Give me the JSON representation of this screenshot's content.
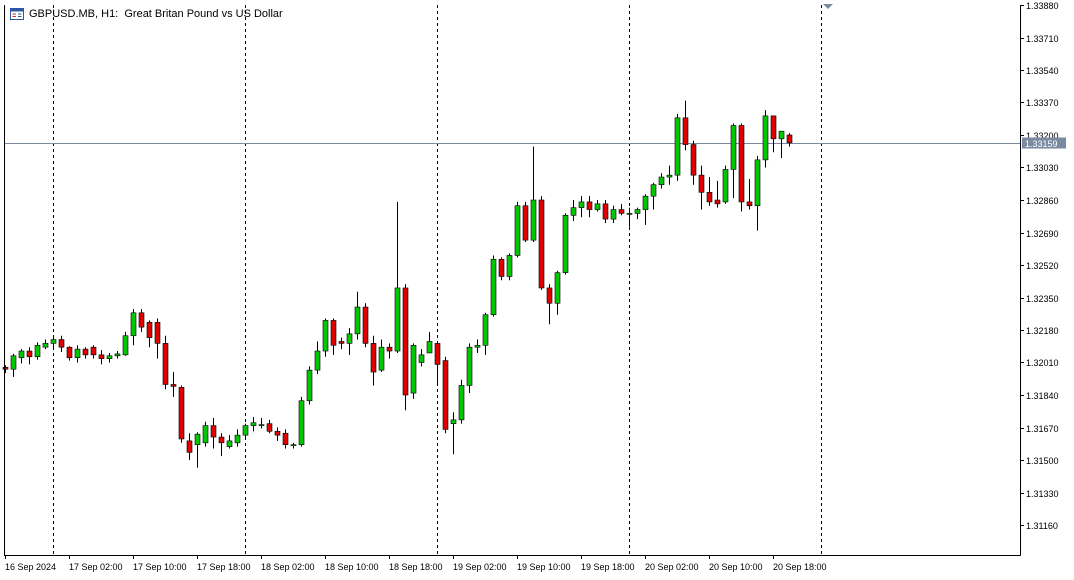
{
  "chart_data": {
    "type": "candlestick",
    "symbol_title": "GBPUSD.MB, H1:  Great Britan Pound vs US Dollar",
    "current_price_label": "1.33159",
    "current_price": 1.33159,
    "y_ticks": [
      "1.33880",
      "1.33710",
      "1.33540",
      "1.33370",
      "1.33200",
      "1.33030",
      "1.32860",
      "1.32690",
      "1.32520",
      "1.32350",
      "1.32180",
      "1.32010",
      "1.31840",
      "1.31670",
      "1.31500",
      "1.31330",
      "1.31160"
    ],
    "ylim": [
      1.3101,
      1.3388
    ],
    "x_labels": [
      "16 Sep 2024",
      "17 Sep 02:00",
      "17 Sep 10:00",
      "17 Sep 18:00",
      "18 Sep 02:00",
      "18 Sep 10:00",
      "18 Sep 18:00",
      "19 Sep 02:00",
      "19 Sep 10:00",
      "19 Sep 18:00",
      "20 Sep 02:00",
      "20 Sep 10:00",
      "20 Sep 18:00"
    ],
    "x_label_bar_index": [
      0,
      8,
      16,
      24,
      32,
      40,
      48,
      56,
      64,
      72,
      80,
      88,
      96
    ],
    "day_separator_bar_index": [
      6,
      30,
      54,
      78,
      102
    ],
    "colors": {
      "bull": "#00c800",
      "bear": "#e00000",
      "wick": "#000000",
      "price_line": "#7a8aa0",
      "price_label_bg": "#7a8aa0",
      "grid_sep": "#000000",
      "axis": "#000000"
    },
    "candles": [
      [
        1.31985,
        1.31975,
        1.31995,
        1.31955
      ],
      [
        1.31975,
        1.32045,
        1.32055,
        1.31935
      ],
      [
        1.32035,
        1.3207,
        1.3208,
        1.32005
      ],
      [
        1.3207,
        1.3204,
        1.3209,
        1.32
      ],
      [
        1.3204,
        1.321,
        1.32115,
        1.32025
      ],
      [
        1.3209,
        1.3211,
        1.3213,
        1.3208
      ],
      [
        1.3211,
        1.3213,
        1.3215,
        1.3208
      ],
      [
        1.3213,
        1.3209,
        1.3215,
        1.32065
      ],
      [
        1.3209,
        1.32035,
        1.32095,
        1.3202
      ],
      [
        1.32035,
        1.3208,
        1.321,
        1.3201
      ],
      [
        1.3208,
        1.3205,
        1.3209,
        1.3203
      ],
      [
        1.3209,
        1.3205,
        1.321,
        1.3203
      ],
      [
        1.3205,
        1.3203,
        1.32075,
        1.32
      ],
      [
        1.3203,
        1.32045,
        1.3206,
        1.3201
      ],
      [
        1.32045,
        1.32055,
        1.3207,
        1.3203
      ],
      [
        1.3205,
        1.3215,
        1.3217,
        1.32045
      ],
      [
        1.3215,
        1.3227,
        1.3229,
        1.321
      ],
      [
        1.3227,
        1.32195,
        1.3229,
        1.3217
      ],
      [
        1.3222,
        1.3214,
        1.3223,
        1.3209
      ],
      [
        1.3222,
        1.3211,
        1.3224,
        1.3203
      ],
      [
        1.3211,
        1.31895,
        1.3215,
        1.3187
      ],
      [
        1.31895,
        1.31885,
        1.3196,
        1.3183
      ],
      [
        1.3188,
        1.3161,
        1.3189,
        1.3159
      ],
      [
        1.316,
        1.3154,
        1.3164,
        1.315
      ],
      [
        1.3158,
        1.31635,
        1.31645,
        1.3146
      ],
      [
        1.3159,
        1.3168,
        1.317,
        1.3157
      ],
      [
        1.3168,
        1.3162,
        1.3172,
        1.3156
      ],
      [
        1.3162,
        1.3159,
        1.3164,
        1.3152
      ],
      [
        1.3157,
        1.316,
        1.3163,
        1.3156
      ],
      [
        1.3159,
        1.3163,
        1.3166,
        1.3157
      ],
      [
        1.3163,
        1.3168,
        1.3169,
        1.3161
      ],
      [
        1.3168,
        1.31695,
        1.31725,
        1.3165
      ],
      [
        1.31685,
        1.31685,
        1.3172,
        1.31665
      ],
      [
        1.3169,
        1.3165,
        1.3171,
        1.3164
      ],
      [
        1.3165,
        1.3163,
        1.3167,
        1.316
      ],
      [
        1.3164,
        1.3158,
        1.3166,
        1.3156
      ],
      [
        1.3158,
        1.3158,
        1.3159,
        1.3156
      ],
      [
        1.3158,
        1.3181,
        1.3183,
        1.3157
      ],
      [
        1.3181,
        1.3197,
        1.3199,
        1.3179
      ],
      [
        1.3197,
        1.3207,
        1.3212,
        1.3195
      ],
      [
        1.3207,
        1.3223,
        1.3224,
        1.3204
      ],
      [
        1.3223,
        1.321,
        1.3224,
        1.3205
      ],
      [
        1.3212,
        1.3211,
        1.3214,
        1.3208
      ],
      [
        1.3211,
        1.3216,
        1.3219,
        1.3205
      ],
      [
        1.3216,
        1.323,
        1.3238,
        1.3213
      ],
      [
        1.323,
        1.3211,
        1.3232,
        1.3209
      ],
      [
        1.3211,
        1.3196,
        1.3215,
        1.3189
      ],
      [
        1.3197,
        1.3209,
        1.3213,
        1.3196
      ],
      [
        1.3209,
        1.3207,
        1.3211,
        1.3203
      ],
      [
        1.3207,
        1.324,
        1.3285,
        1.3206
      ],
      [
        1.324,
        1.3184,
        1.3242,
        1.3176
      ],
      [
        1.3185,
        1.321,
        1.3211,
        1.3182
      ],
      [
        1.3201,
        1.3205,
        1.3208,
        1.3199
      ],
      [
        1.3206,
        1.3212,
        1.3217,
        1.3206
      ],
      [
        1.3211,
        1.32,
        1.3212,
        1.319
      ],
      [
        1.3202,
        1.3166,
        1.3204,
        1.3164
      ],
      [
        1.3169,
        1.3171,
        1.3175,
        1.3153
      ],
      [
        1.3171,
        1.3189,
        1.3192,
        1.3169
      ],
      [
        1.3189,
        1.3209,
        1.3211,
        1.3185
      ],
      [
        1.3209,
        1.321,
        1.3213,
        1.3206
      ],
      [
        1.321,
        1.3226,
        1.3227,
        1.3205
      ],
      [
        1.3226,
        1.3255,
        1.3257,
        1.3225
      ],
      [
        1.3255,
        1.3246,
        1.3256,
        1.3244
      ],
      [
        1.3246,
        1.3257,
        1.3258,
        1.3244
      ],
      [
        1.3257,
        1.3283,
        1.3285,
        1.3256
      ],
      [
        1.3283,
        1.3265,
        1.3285,
        1.3264
      ],
      [
        1.3265,
        1.3286,
        1.3314,
        1.3264
      ],
      [
        1.3286,
        1.324,
        1.3288,
        1.3239
      ],
      [
        1.324,
        1.3232,
        1.3242,
        1.3221
      ],
      [
        1.3232,
        1.3248,
        1.3249,
        1.3226
      ],
      [
        1.3248,
        1.3278,
        1.3279,
        1.3247
      ],
      [
        1.3278,
        1.3282,
        1.3286,
        1.3275
      ],
      [
        1.3282,
        1.3285,
        1.3288,
        1.3277
      ],
      [
        1.3285,
        1.3281,
        1.3288,
        1.3277
      ],
      [
        1.3281,
        1.3284,
        1.3286,
        1.328
      ],
      [
        1.3284,
        1.3276,
        1.3286,
        1.3274
      ],
      [
        1.3276,
        1.3281,
        1.3283,
        1.3274
      ],
      [
        1.3281,
        1.3279,
        1.3284,
        1.3278
      ],
      [
        1.3279,
        1.3279,
        1.3282,
        1.3272
      ],
      [
        1.3279,
        1.3281,
        1.3282,
        1.3276
      ],
      [
        1.3281,
        1.3288,
        1.3289,
        1.3273
      ],
      [
        1.3288,
        1.3294,
        1.3295,
        1.3281
      ],
      [
        1.3294,
        1.3298,
        1.33,
        1.3292
      ],
      [
        1.3298,
        1.3299,
        1.3304,
        1.3294
      ],
      [
        1.3299,
        1.3329,
        1.3331,
        1.3296
      ],
      [
        1.3329,
        1.3315,
        1.3338,
        1.3312
      ],
      [
        1.3315,
        1.3299,
        1.3317,
        1.3294
      ],
      [
        1.3299,
        1.329,
        1.3304,
        1.3281
      ],
      [
        1.329,
        1.3285,
        1.3298,
        1.3283
      ],
      [
        1.3286,
        1.3284,
        1.3296,
        1.3282
      ],
      [
        1.3285,
        1.3302,
        1.3304,
        1.3284
      ],
      [
        1.3302,
        1.3325,
        1.3326,
        1.3287
      ],
      [
        1.3325,
        1.3285,
        1.3326,
        1.328
      ],
      [
        1.3285,
        1.3283,
        1.3297,
        1.3281
      ],
      [
        1.3283,
        1.3307,
        1.3309,
        1.327
      ],
      [
        1.3307,
        1.333,
        1.3333,
        1.3303
      ],
      [
        1.333,
        1.3318,
        1.333,
        1.3311
      ],
      [
        1.3318,
        1.3322,
        1.3321,
        1.3308
      ],
      [
        1.332,
        1.33159,
        1.3321,
        1.3314
      ]
    ]
  }
}
